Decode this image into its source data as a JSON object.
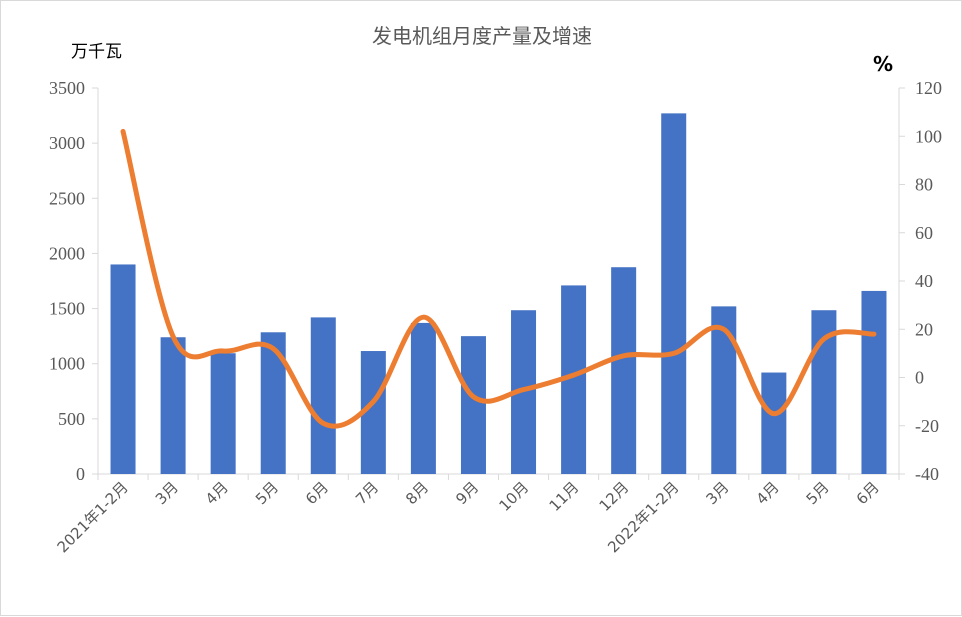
{
  "chart_data": {
    "type": "bar",
    "title": "发电机组月度产量及增速",
    "y_left_unit": "万千瓦",
    "y_right_unit": "%",
    "categories": [
      "2021年1-2月",
      "3月",
      "4月",
      "5月",
      "6月",
      "7月",
      "8月",
      "9月",
      "10月",
      "11月",
      "12月",
      "2022年1-2月",
      "3月",
      "4月",
      "5月",
      "6月"
    ],
    "series": [
      {
        "values": [
          1900,
          1240,
          1095,
          1285,
          1420,
          1115,
          1370,
          1250,
          1485,
          1710,
          1875,
          3270,
          1520,
          920,
          1485,
          1660
        ],
        "type": "bar",
        "axis": "left",
        "color": "#4472C4"
      },
      {
        "values": [
          102,
          17,
          11,
          12,
          -19,
          -10,
          25,
          -8,
          -5,
          1,
          9,
          10,
          20,
          -15,
          16,
          18
        ],
        "type": "line",
        "axis": "right",
        "color": "#ED7D31"
      }
    ],
    "ylim_left": [
      0,
      3500
    ],
    "yticks_left": [
      0,
      500,
      1000,
      1500,
      2000,
      2500,
      3000,
      3500
    ],
    "ylim_right": [
      -40,
      120
    ],
    "yticks_right": [
      -40,
      -20,
      0,
      20,
      40,
      60,
      80,
      100,
      120
    ],
    "grid": false,
    "legend": "none"
  }
}
